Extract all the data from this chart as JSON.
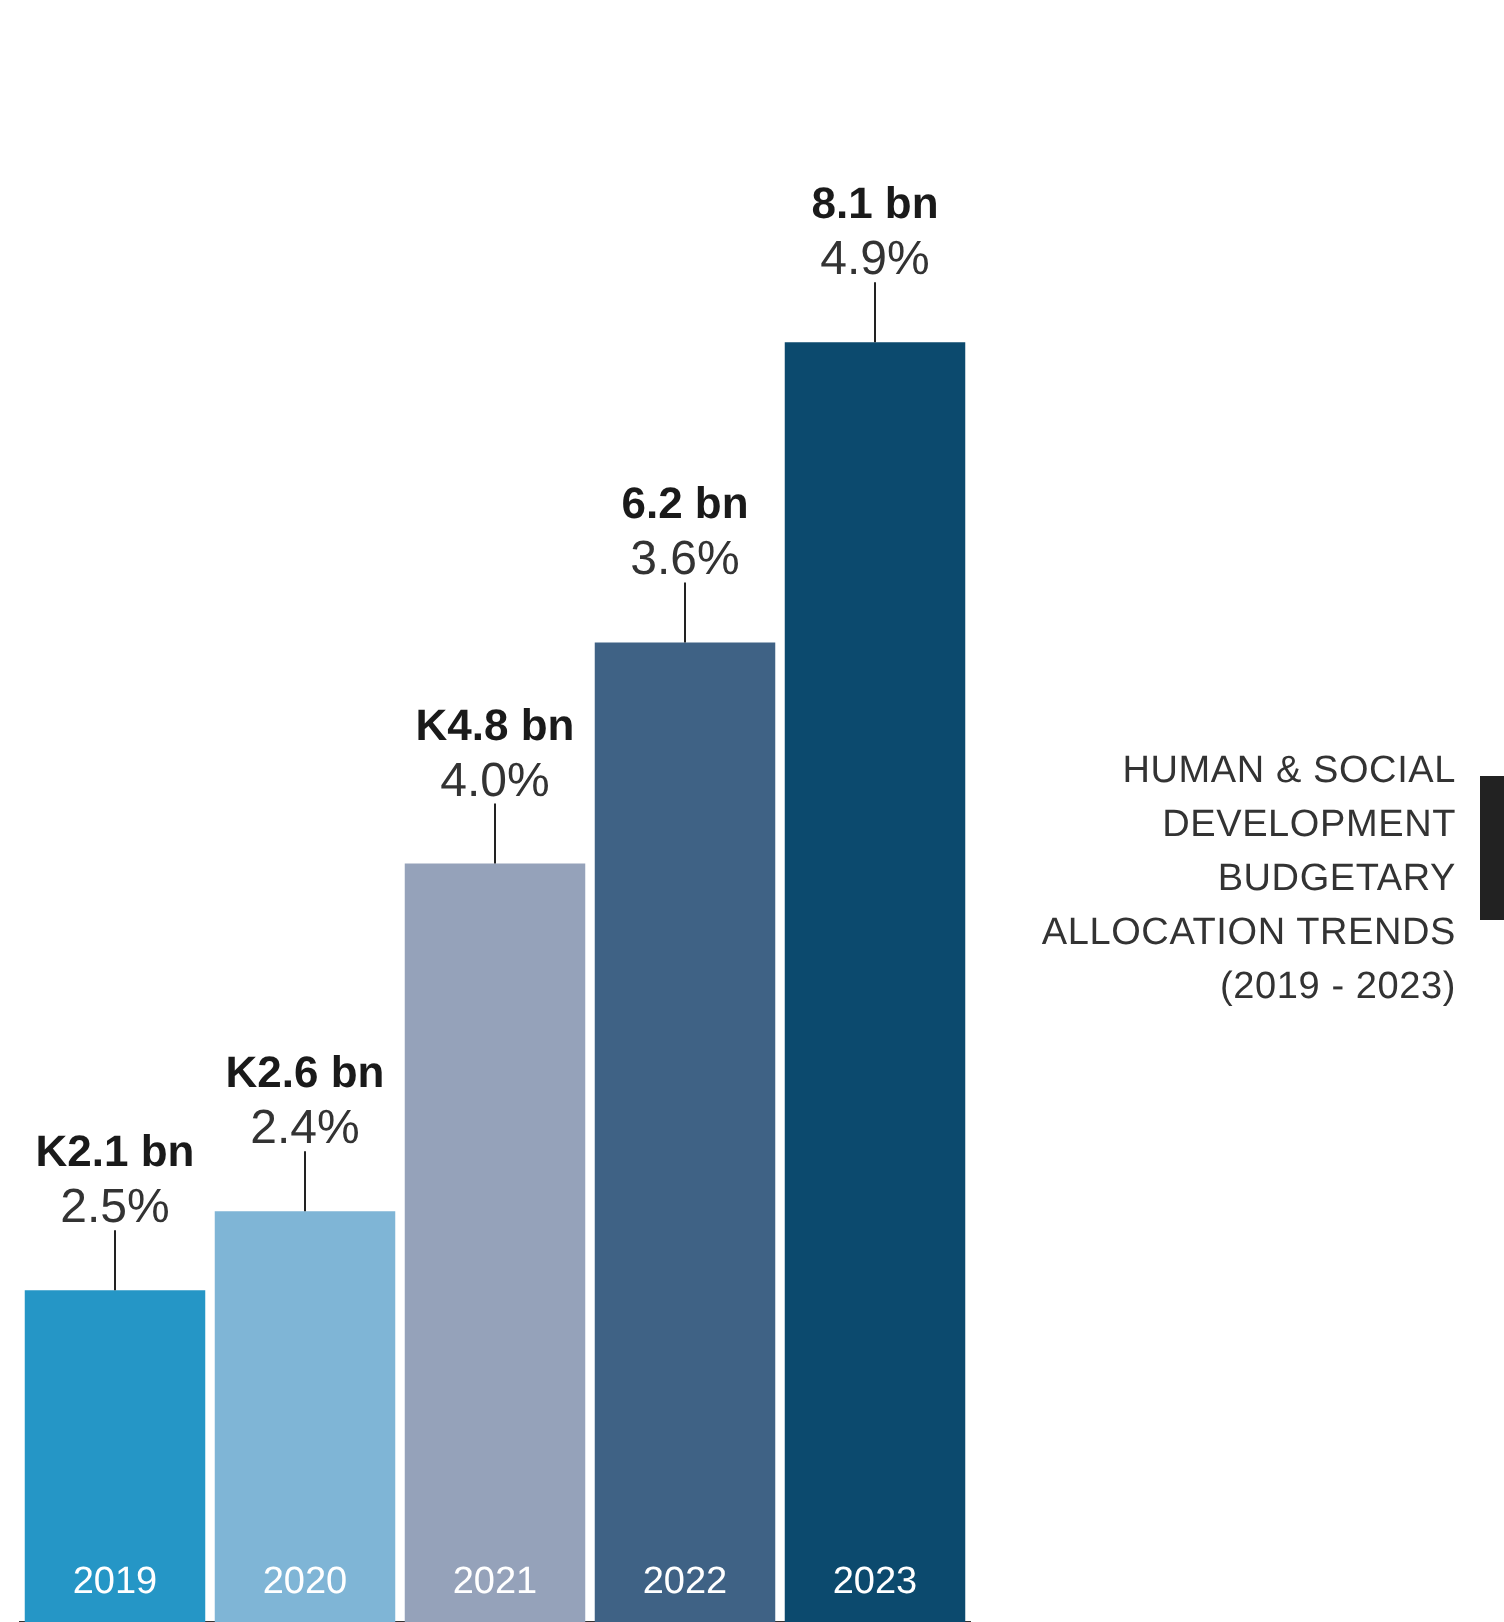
{
  "chart_data": {
    "type": "bar",
    "title": "HUMAN & SOCIAL\nDEVELOPMENT\nBUDGETARY\nALLOCATION TRENDS\n(2019 - 2023)",
    "categories": [
      "2019",
      "2020",
      "2021",
      "2022",
      "2023"
    ],
    "values": [
      2.1,
      2.6,
      4.8,
      6.2,
      8.1
    ],
    "colors": [
      "#2596c6",
      "#7fb5d6",
      "#95a2ba",
      "#3f6285",
      "#0c4a6e"
    ],
    "value_labels": [
      "K2.1 bn",
      "K2.6 bn",
      "K4.8 bn",
      "6.2 bn",
      "8.1 bn"
    ],
    "annotations": [
      {
        "text": "2.5%",
        "x": "2019",
        "y": 2.1
      },
      {
        "text": "2.4%",
        "x": "2020",
        "y": 2.6
      },
      {
        "text": "4.0%",
        "x": "2021",
        "y": 4.8
      },
      {
        "text": "3.6%",
        "x": "2022",
        "y": 6.2
      },
      {
        "text": "4.9%",
        "x": "2023",
        "y": 8.1
      }
    ],
    "legend": false
  }
}
